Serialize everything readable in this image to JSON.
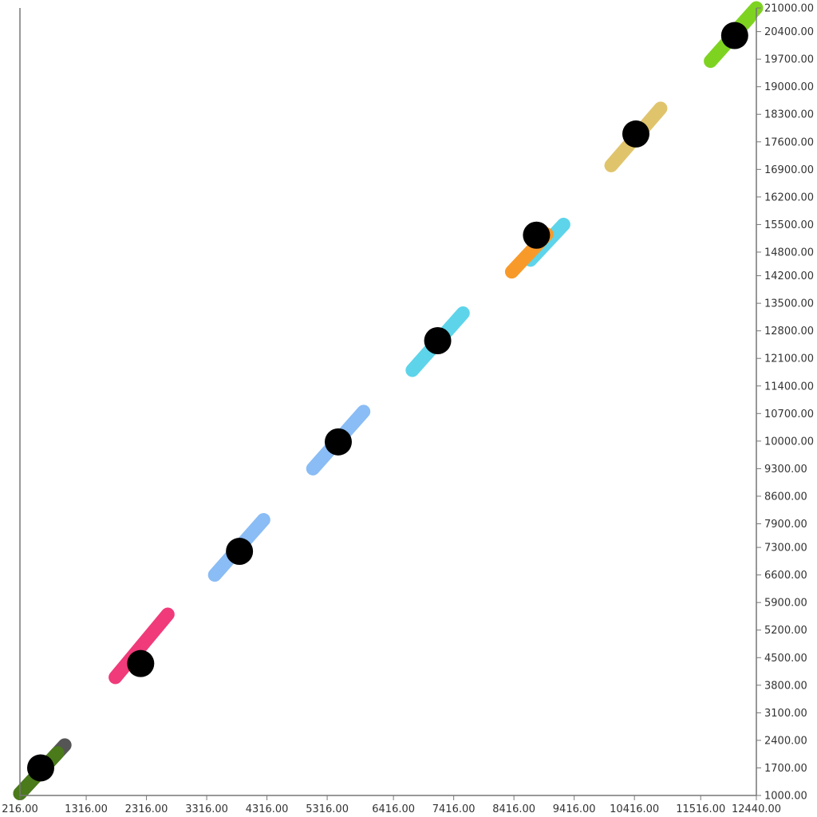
{
  "chart_data": {
    "type": "scatter",
    "title": "",
    "xlabel": "",
    "ylabel": "",
    "xlim": [
      216,
      12440
    ],
    "ylim": [
      1000,
      21000
    ],
    "grid": false,
    "legend": "none",
    "y_axis_side": "right",
    "x_ticks": [
      "216.00",
      "1316.00",
      "2316.00",
      "3316.00",
      "4316.00",
      "5316.00",
      "6416.00",
      "7416.00",
      "8416.00",
      "9416.00",
      "10416.00",
      "11516.00",
      "12440.00"
    ],
    "x_tick_values": [
      216,
      1316,
      2316,
      3316,
      4316,
      5316,
      6416,
      7416,
      8416,
      9416,
      10416,
      11516,
      12440
    ],
    "y_ticks": [
      "1000.00",
      "1700.00",
      "2400.00",
      "3100.00",
      "3800.00",
      "4500.00",
      "5200.00",
      "5900.00",
      "6600.00",
      "7300.00",
      "7900.00",
      "8600.00",
      "9300.00",
      "10000.00",
      "10700.00",
      "11400.00",
      "12100.00",
      "12800.00",
      "13500.00",
      "14200.00",
      "14800.00",
      "15500.00",
      "16200.00",
      "16900.00",
      "17600.00",
      "18300.00",
      "19000.00",
      "19700.00",
      "20400.00",
      "21000.00"
    ],
    "y_tick_values": [
      1000,
      1700,
      2400,
      3100,
      3800,
      4500,
      5200,
      5900,
      6600,
      7300,
      7900,
      8600,
      9300,
      10000,
      10700,
      11400,
      12100,
      12800,
      13500,
      14200,
      14800,
      15500,
      16200,
      16900,
      17600,
      18300,
      19000,
      19700,
      20400,
      21000
    ],
    "segments": [
      {
        "color": "#555555",
        "x": [
          216,
          960
        ],
        "y": [
          1050,
          2280
        ]
      },
      {
        "color": "#4a7a1a",
        "x": [
          216,
          840
        ],
        "y": [
          1050,
          2080
        ]
      },
      {
        "color": "#f03a7a",
        "x": [
          1800,
          2670
        ],
        "y": [
          4000,
          5600
        ]
      },
      {
        "color": "#8abcf5",
        "x": [
          3450,
          4260
        ],
        "y": [
          6600,
          8000
        ]
      },
      {
        "color": "#8abcf5",
        "x": [
          5080,
          5920
        ],
        "y": [
          9300,
          10750
        ]
      },
      {
        "color": "#5dd4ea",
        "x": [
          6730,
          7570
        ],
        "y": [
          11800,
          13250
        ]
      },
      {
        "color": "#5dd4ea",
        "x": [
          8690,
          9240
        ],
        "y": [
          14600,
          15500
        ]
      },
      {
        "color": "#f89a2a",
        "x": [
          8380,
          8960
        ],
        "y": [
          14300,
          15250
        ]
      },
      {
        "color": "#e0c46c",
        "x": [
          10030,
          10850
        ],
        "y": [
          17000,
          18450
        ]
      },
      {
        "color": "#7ed321",
        "x": [
          11680,
          12320
        ],
        "y": [
          19650,
          20750
        ]
      },
      {
        "color": "#7ed321",
        "x": [
          12000,
          12440
        ],
        "y": [
          20250,
          21000
        ]
      }
    ],
    "points": [
      {
        "x": 560,
        "y": 1700,
        "color": "#000000"
      },
      {
        "x": 2220,
        "y": 4350,
        "color": "#000000"
      },
      {
        "x": 3860,
        "y": 7200,
        "color": "#000000"
      },
      {
        "x": 5500,
        "y": 9980,
        "color": "#000000"
      },
      {
        "x": 7150,
        "y": 12550,
        "color": "#000000"
      },
      {
        "x": 8790,
        "y": 15230,
        "color": "#000000"
      },
      {
        "x": 10440,
        "y": 17800,
        "color": "#000000"
      },
      {
        "x": 12080,
        "y": 20300,
        "color": "#000000"
      }
    ]
  }
}
